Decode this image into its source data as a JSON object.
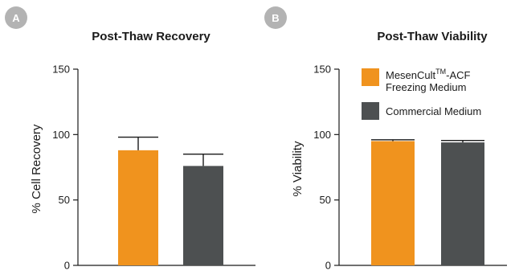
{
  "chart_data": [
    {
      "type": "bar",
      "panel_label": "A",
      "title": "Post-Thaw Recovery",
      "ylabel": "% Cell Recovery",
      "xlabel": "",
      "ylim": [
        0,
        150
      ],
      "yticks": [
        0,
        50,
        100,
        150
      ],
      "grid": false,
      "bars": [
        {
          "value": 88,
          "error": 10,
          "color": "#f0931e"
        },
        {
          "value": 76,
          "error": 9,
          "color": "#4d5051"
        }
      ]
    },
    {
      "type": "bar",
      "panel_label": "B",
      "title": "Post-Thaw Viability",
      "ylabel": "% Viability",
      "xlabel": "",
      "ylim": [
        0,
        150
      ],
      "yticks": [
        0,
        50,
        100,
        150
      ],
      "grid": false,
      "legend_position": "top-right",
      "legend": [
        {
          "name": "MesenCult",
          "superscript": "TM",
          "suffix": "-ACF",
          "line2": "Freezing Medium",
          "color": "#f0931e"
        },
        {
          "name": "Commercial Medium",
          "color": "#4d5051"
        }
      ],
      "bars": [
        {
          "value": 95,
          "error": 1,
          "color": "#f0931e"
        },
        {
          "value": 94,
          "error": 1.5,
          "color": "#4d5051"
        }
      ]
    }
  ],
  "colors": {
    "badge": "#b3b3b3",
    "axis": "#1a1a1a",
    "orange": "#f0931e",
    "gray": "#4d5051"
  }
}
